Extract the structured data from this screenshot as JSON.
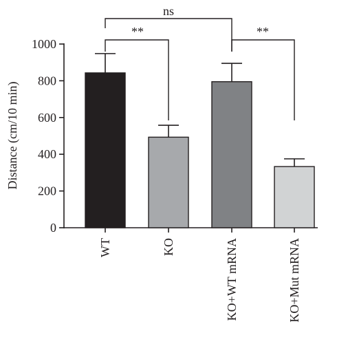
{
  "chart_data": {
    "type": "bar",
    "title": "",
    "xlabel": "",
    "ylabel": "Distance (cm/10 min)",
    "ylim": [
      0,
      1000
    ],
    "yticks": [
      0,
      200,
      400,
      600,
      800,
      1000
    ],
    "grid": false,
    "categories": [
      "WT",
      "KO",
      "KO+WT mRNA",
      "KO+Mut mRNA"
    ],
    "values": [
      843,
      493,
      795,
      333
    ],
    "errors": [
      105,
      65,
      100,
      42
    ],
    "bar_colors": [
      "#231f20",
      "#a7a9ac",
      "#808285",
      "#d1d3d4"
    ],
    "significance": [
      {
        "from": "WT",
        "to": "KO",
        "label": "**"
      },
      {
        "from": "WT",
        "to": "KO+WT mRNA",
        "label": "ns"
      },
      {
        "from": "KO+WT mRNA",
        "to": "KO+Mut mRNA",
        "label": "**"
      }
    ]
  }
}
